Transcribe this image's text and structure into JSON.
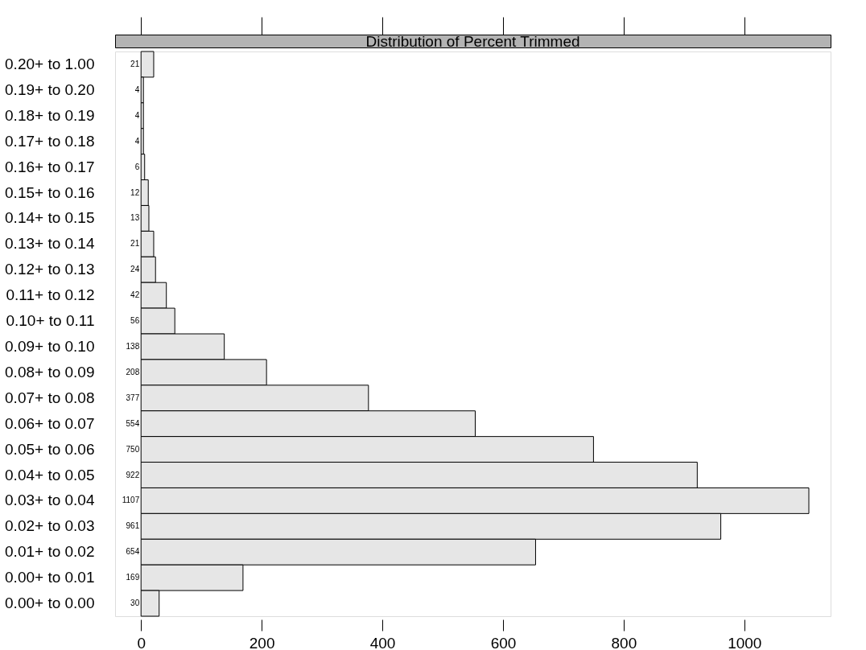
{
  "chart_data": {
    "type": "bar",
    "orientation": "horizontal",
    "title": "Distribution of Percent Trimmed",
    "categories": [
      "0.20+ to 1.00",
      "0.19+ to 0.20",
      "0.18+ to 0.19",
      "0.17+ to 0.18",
      "0.16+ to 0.17",
      "0.15+ to 0.16",
      "0.14+ to 0.15",
      "0.13+ to 0.14",
      "0.12+ to 0.13",
      "0.11+ to 0.12",
      "0.10+ to 0.11",
      "0.09+ to 0.10",
      "0.08+ to 0.09",
      "0.07+ to 0.08",
      "0.06+ to 0.07",
      "0.05+ to 0.06",
      "0.04+ to 0.05",
      "0.03+ to 0.04",
      "0.02+ to 0.03",
      "0.01+ to 0.02",
      "0.00+ to 0.01",
      "0.00+ to 0.00"
    ],
    "values": [
      21,
      4,
      4,
      4,
      6,
      12,
      13,
      21,
      24,
      42,
      56,
      138,
      208,
      377,
      554,
      750,
      922,
      1107,
      961,
      654,
      169,
      30
    ],
    "color": "#e6e6e6",
    "xlim": [
      -43,
      1143
    ],
    "xticks": [
      0,
      200,
      400,
      600,
      800,
      1000
    ],
    "data_labels": true,
    "grid": false
  }
}
